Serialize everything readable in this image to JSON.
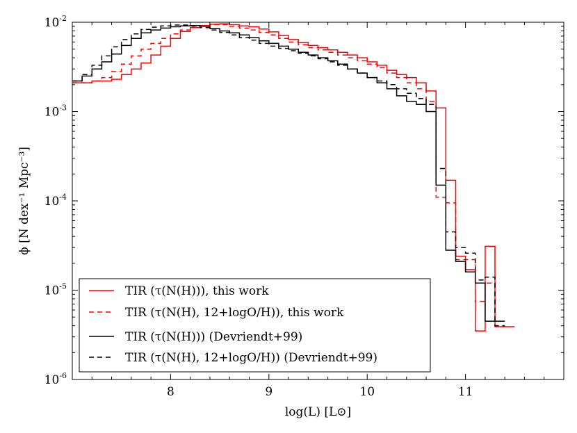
{
  "chart_data": {
    "type": "line",
    "subtype": "step-histogram",
    "title": "",
    "xlabel": "log(L) [L⊙]",
    "ylabel": "ϕ [N dex⁻¹ Mpc⁻³]",
    "xlim": [
      7.0,
      12.0
    ],
    "ylim": [
      1e-06,
      0.01
    ],
    "yscale": "log",
    "x_ticks": [
      "8",
      "9",
      "10",
      "11"
    ],
    "y_ticks": [
      {
        "base": "10",
        "exp": "-6"
      },
      {
        "base": "10",
        "exp": "-5"
      },
      {
        "base": "10",
        "exp": "-4"
      },
      {
        "base": "10",
        "exp": "-3"
      },
      {
        "base": "10",
        "exp": "-2"
      }
    ],
    "legend_position": "lower-left",
    "bin_width": 0.1,
    "series": [
      {
        "name": "TIR (τ(N(H))), this work",
        "color": "#ff0000",
        "dash": "solid",
        "bins_start": [
          7.0,
          7.1,
          7.2,
          7.3,
          7.4,
          7.5,
          7.6,
          7.7,
          7.8,
          7.9,
          8.0,
          8.1,
          8.2,
          8.3,
          8.4,
          8.5,
          8.6,
          8.7,
          8.8,
          8.9,
          9.0,
          9.1,
          9.2,
          9.3,
          9.4,
          9.5,
          9.6,
          9.7,
          9.8,
          9.9,
          10.0,
          10.1,
          10.2,
          10.3,
          10.4,
          10.5,
          10.6,
          10.7,
          10.8,
          10.9,
          11.0,
          11.1,
          11.2,
          11.3,
          11.4
        ],
        "values": [
          0.0021,
          0.0021,
          0.0022,
          0.0022,
          0.0023,
          0.0026,
          0.003,
          0.0035,
          0.0043,
          0.0054,
          0.0066,
          0.0079,
          0.0087,
          0.0092,
          0.0095,
          0.0096,
          0.0094,
          0.0091,
          0.0089,
          0.0084,
          0.0078,
          0.0071,
          0.0064,
          0.0059,
          0.0055,
          0.0052,
          0.0049,
          0.0046,
          0.0043,
          0.004,
          0.0036,
          0.0033,
          0.0029,
          0.0026,
          0.0024,
          0.0021,
          0.0017,
          0.0011,
          0.00017,
          2.4e-05,
          1.7e-05,
          3.5e-06,
          3.1e-05,
          3.9e-06,
          3.9e-06
        ]
      },
      {
        "name": "TIR (τ(N(H), 12+logO/H)), this work",
        "color": "#ff0000",
        "dash": "dashed",
        "bins_start": [
          7.0,
          7.1,
          7.2,
          7.3,
          7.4,
          7.5,
          7.6,
          7.7,
          7.8,
          7.9,
          8.0,
          8.1,
          8.2,
          8.3,
          8.4,
          8.5,
          8.6,
          8.7,
          8.8,
          8.9,
          9.0,
          9.1,
          9.2,
          9.3,
          9.4,
          9.5,
          9.6,
          9.7,
          9.8,
          9.9,
          10.0,
          10.1,
          10.2,
          10.3,
          10.4,
          10.5,
          10.6,
          10.7,
          10.8,
          10.9,
          11.0,
          11.1,
          11.2,
          11.3
        ],
        "values": [
          0.0021,
          0.0021,
          0.0022,
          0.0024,
          0.0028,
          0.0034,
          0.0042,
          0.005,
          0.0058,
          0.0066,
          0.0074,
          0.0082,
          0.0088,
          0.0092,
          0.0094,
          0.0094,
          0.009,
          0.0086,
          0.0082,
          0.0077,
          0.0072,
          0.0066,
          0.006,
          0.0056,
          0.0052,
          0.0049,
          0.0046,
          0.0043,
          0.004,
          0.0037,
          0.0034,
          0.0031,
          0.0027,
          0.0024,
          0.0021,
          0.0018,
          0.0013,
          0.00011,
          9.5e-05,
          2.2e-05,
          2.2e-05,
          7.5e-06,
          1.2e-05,
          4e-06
        ]
      },
      {
        "name": "TIR (τ(N(H))) (Devriendt+99)",
        "color": "#000000",
        "dash": "solid",
        "bins_start": [
          7.0,
          7.1,
          7.2,
          7.3,
          7.4,
          7.5,
          7.6,
          7.7,
          7.8,
          7.9,
          8.0,
          8.1,
          8.2,
          8.3,
          8.4,
          8.5,
          8.6,
          8.7,
          8.8,
          8.9,
          9.0,
          9.1,
          9.2,
          9.3,
          9.4,
          9.5,
          9.6,
          9.7,
          9.8,
          9.9,
          10.0,
          10.1,
          10.2,
          10.3,
          10.4,
          10.5,
          10.6,
          10.7,
          10.8,
          10.9,
          11.0,
          11.1,
          11.2,
          11.3
        ],
        "values": [
          0.0022,
          0.0025,
          0.003,
          0.0036,
          0.0044,
          0.0055,
          0.0066,
          0.0076,
          0.0082,
          0.0086,
          0.0089,
          0.0091,
          0.0092,
          0.009,
          0.0085,
          0.008,
          0.0076,
          0.0072,
          0.0067,
          0.0062,
          0.0058,
          0.0054,
          0.005,
          0.0046,
          0.0043,
          0.004,
          0.0037,
          0.0034,
          0.003,
          0.0027,
          0.0024,
          0.0021,
          0.0018,
          0.0015,
          0.0013,
          0.0012,
          0.001,
          0.00015,
          2.8e-05,
          2.1e-05,
          1.6e-05,
          1.2e-05,
          4.5e-06,
          4.5e-06
        ]
      },
      {
        "name": "TIR (τ(N(H), 12+logO/H)) (Devriendt+99)",
        "color": "#000000",
        "dash": "dashed",
        "bins_start": [
          7.0,
          7.1,
          7.2,
          7.3,
          7.4,
          7.5,
          7.6,
          7.7,
          7.8,
          7.9,
          8.0,
          8.1,
          8.2,
          8.3,
          8.4,
          8.5,
          8.6,
          8.7,
          8.8,
          8.9,
          9.0,
          9.1,
          9.2,
          9.3,
          9.4,
          9.5,
          9.6,
          9.7,
          9.8,
          9.9,
          10.0,
          10.1,
          10.2,
          10.3,
          10.4,
          10.5,
          10.6,
          10.7,
          10.8,
          10.9,
          11.0,
          11.1,
          11.2,
          11.3
        ],
        "values": [
          0.0022,
          0.0026,
          0.0033,
          0.0042,
          0.0053,
          0.0064,
          0.0074,
          0.0083,
          0.0088,
          0.0091,
          0.0093,
          0.0093,
          0.0091,
          0.0087,
          0.0082,
          0.0077,
          0.0072,
          0.0067,
          0.0063,
          0.0058,
          0.0054,
          0.0051,
          0.0048,
          0.0045,
          0.0042,
          0.0039,
          0.0036,
          0.0033,
          0.003,
          0.0027,
          0.0024,
          0.0022,
          0.002,
          0.0018,
          0.0016,
          0.0014,
          0.0012,
          0.00023,
          4.5e-05,
          3e-05,
          2.6e-05,
          1.3e-05,
          1.4e-05,
          4e-06
        ]
      }
    ]
  }
}
